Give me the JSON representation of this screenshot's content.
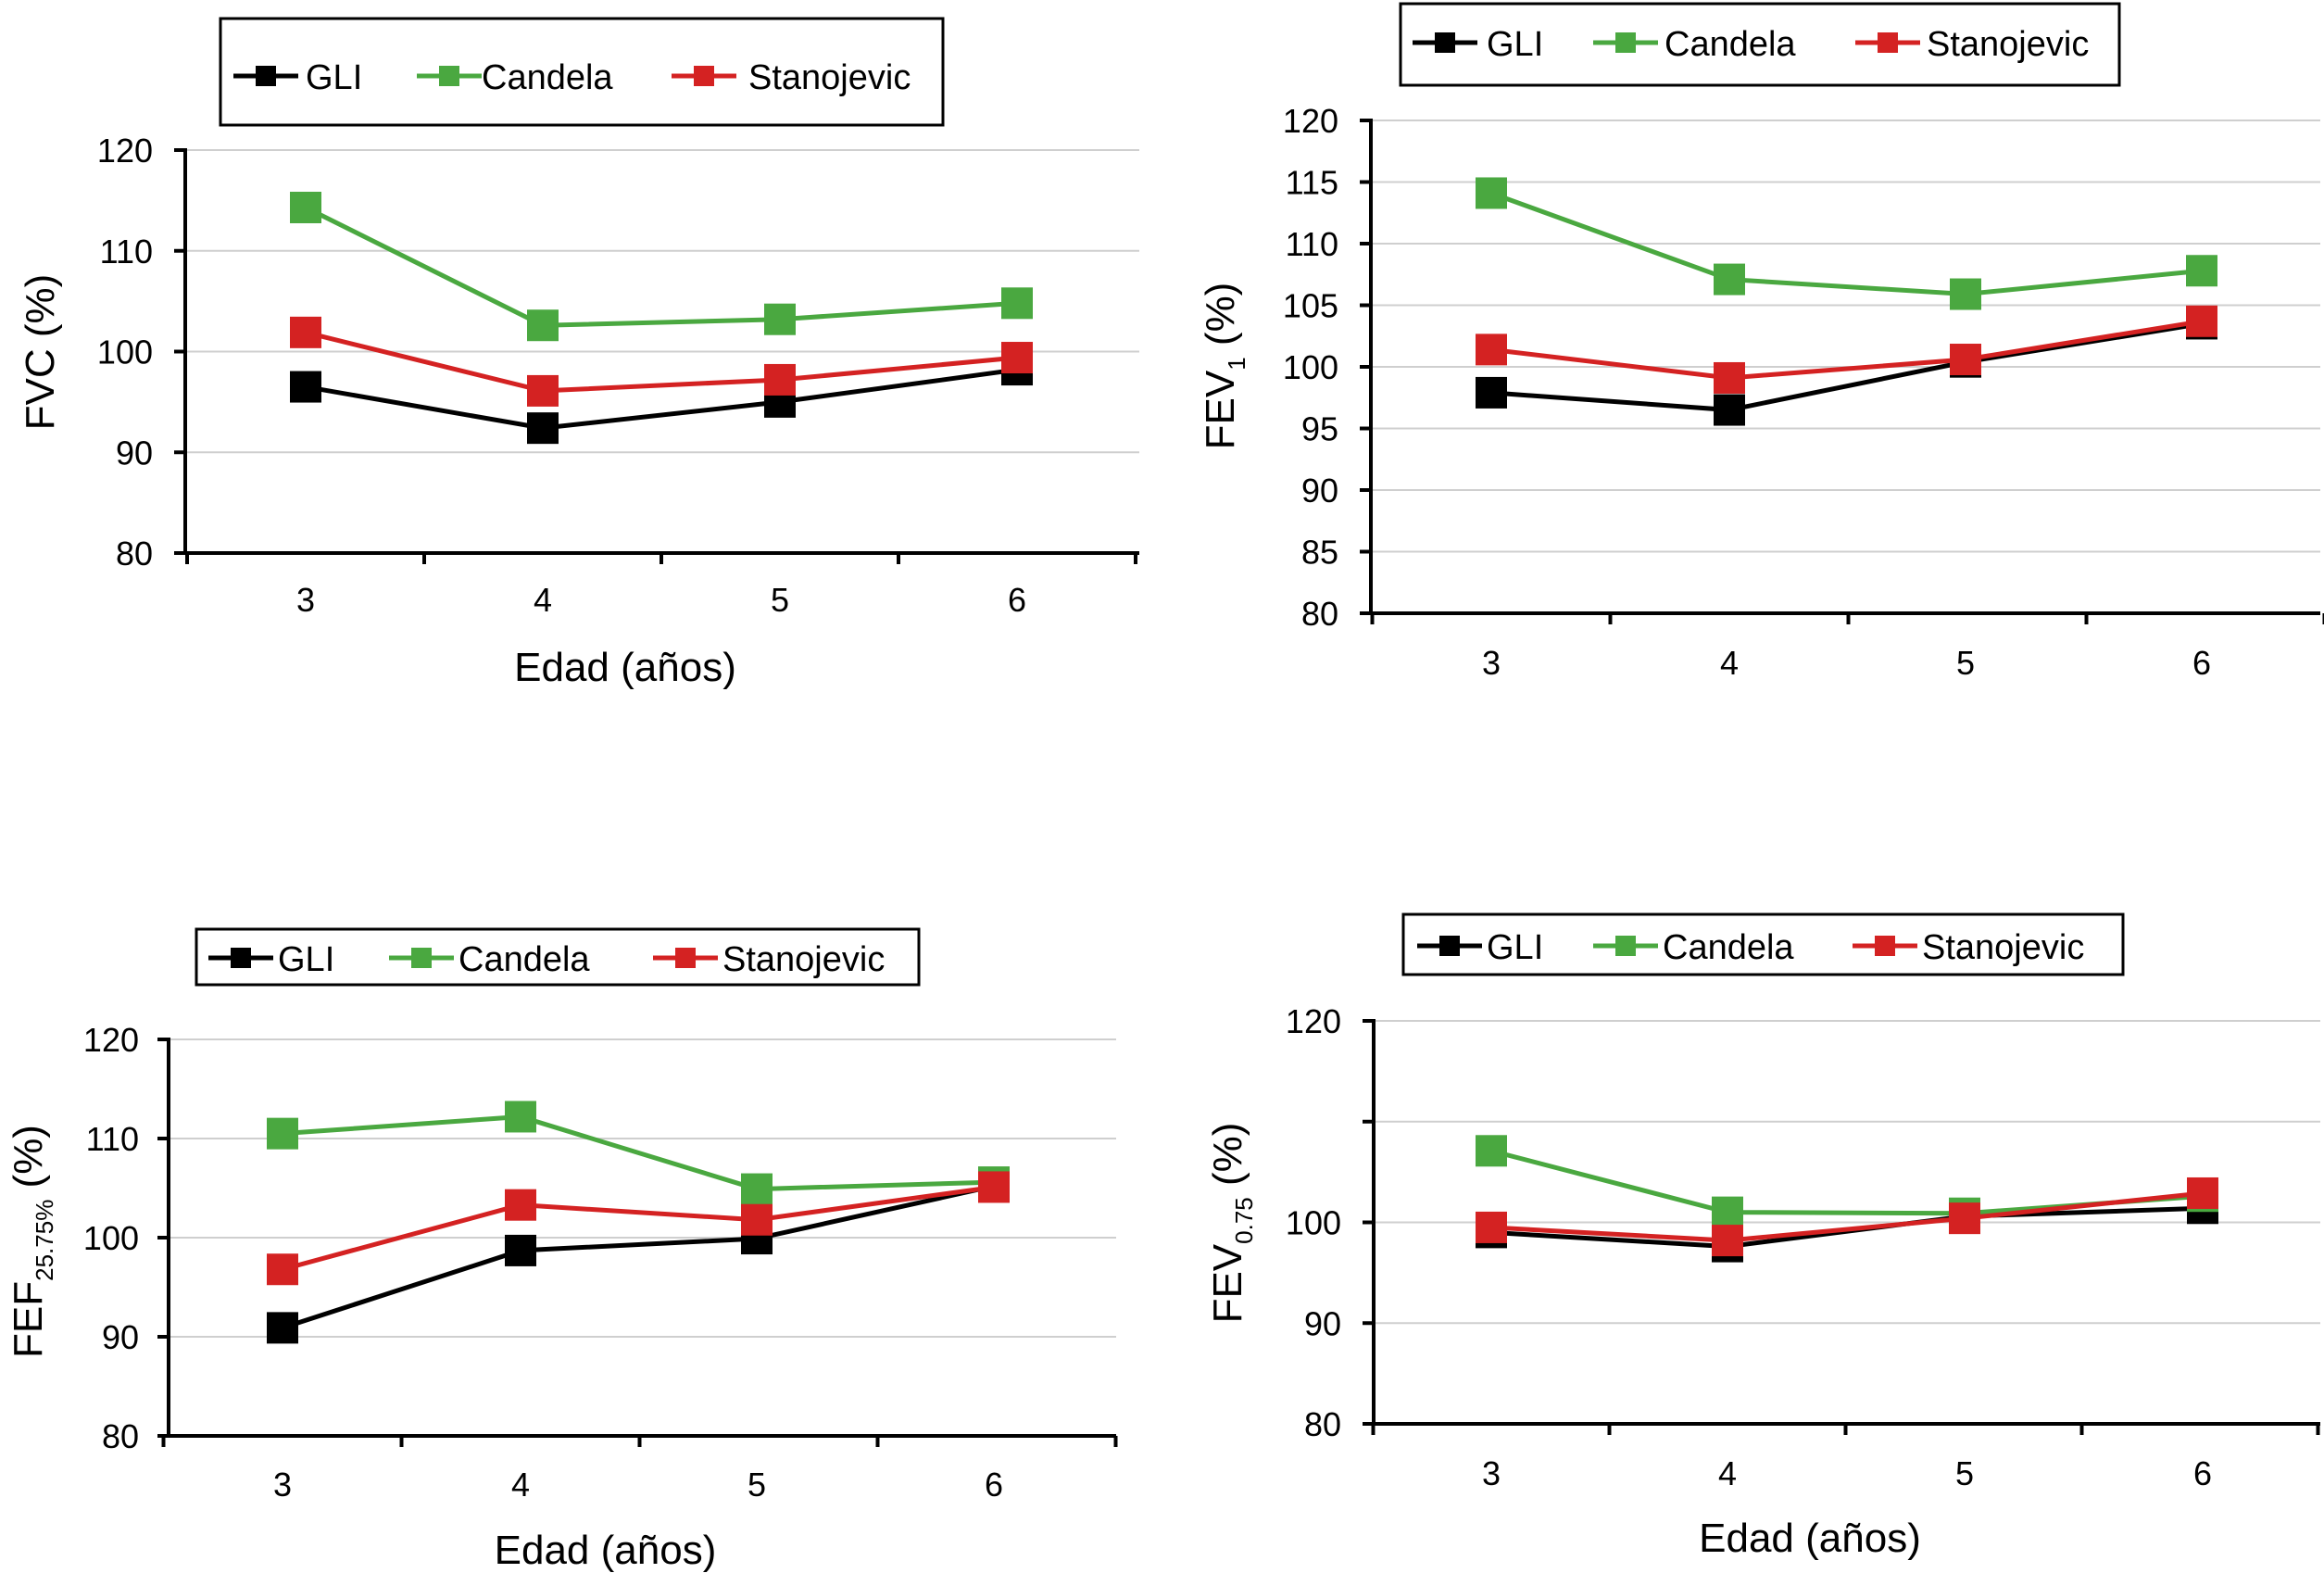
{
  "colors": {
    "GLI": "#000000",
    "Candela": "#4aa840",
    "Stanojevic": "#d42222",
    "grid": "#cfcfcf"
  },
  "chart_data": [
    {
      "id": "fvc",
      "type": "line",
      "ylabel_main": "FVC (%)",
      "ylabel_sub": "",
      "ylabel_tail": "",
      "xlabel": "Edad (años)",
      "categories": [
        "3",
        "4",
        "5",
        "6"
      ],
      "ylim": [
        80,
        120
      ],
      "yticks": [
        80,
        90,
        100,
        110,
        120
      ],
      "ytick_labels": [
        "80",
        "90",
        "100",
        "110",
        "120"
      ],
      "legend": "top-left",
      "grid": true,
      "series": [
        {
          "name": "GLI",
          "values": [
            96.5,
            92.4,
            95.0,
            98.2
          ]
        },
        {
          "name": "Candela",
          "values": [
            114.3,
            102.6,
            103.2,
            104.8
          ]
        },
        {
          "name": "Stanojevic",
          "values": [
            101.9,
            96.1,
            97.2,
            99.4
          ]
        }
      ]
    },
    {
      "id": "fev1",
      "type": "line",
      "ylabel_main": "FEV",
      "ylabel_sub": "1",
      "ylabel_tail": " (%)",
      "xlabel": "",
      "categories": [
        "3",
        "4",
        "5",
        "6"
      ],
      "ylim": [
        80,
        120
      ],
      "yticks": [
        80,
        85,
        90,
        95,
        100,
        105,
        110,
        115,
        120
      ],
      "ytick_labels": [
        "80",
        "85",
        "90",
        "95",
        "100",
        "105",
        "110",
        "115",
        "120"
      ],
      "legend": "top",
      "grid": true,
      "series": [
        {
          "name": "GLI",
          "values": [
            97.9,
            96.5,
            100.4,
            103.5
          ]
        },
        {
          "name": "Candela",
          "values": [
            114.1,
            107.1,
            105.9,
            107.8
          ]
        },
        {
          "name": "Stanojevic",
          "values": [
            101.4,
            99.1,
            100.6,
            103.7
          ]
        }
      ]
    },
    {
      "id": "fef2575",
      "type": "line",
      "ylabel_main": "FEF",
      "ylabel_sub": "25.75%",
      "ylabel_tail": " (%)",
      "xlabel": "Edad (años)",
      "categories": [
        "3",
        "4",
        "5",
        "6"
      ],
      "ylim": [
        80,
        120
      ],
      "yticks": [
        80,
        90,
        100,
        110,
        120
      ],
      "ytick_labels": [
        "80",
        "90",
        "100",
        "110",
        "120"
      ],
      "legend": "top",
      "grid": true,
      "series": [
        {
          "name": "GLI",
          "values": [
            90.9,
            98.7,
            99.9,
            105.2
          ]
        },
        {
          "name": "Candela",
          "values": [
            110.5,
            112.2,
            104.9,
            105.6
          ]
        },
        {
          "name": "Stanojevic",
          "values": [
            96.8,
            103.3,
            101.8,
            105.1
          ]
        }
      ]
    },
    {
      "id": "fev075",
      "type": "line",
      "ylabel_main": "FEV",
      "ylabel_sub": "0.75",
      "ylabel_tail": " (%)",
      "xlabel": "Edad (años)",
      "categories": [
        "3",
        "4",
        "5",
        "6"
      ],
      "ylim": [
        80,
        120
      ],
      "yticks": [
        80,
        90,
        100,
        110,
        120
      ],
      "ytick_labels": [
        "80",
        "90",
        "100",
        "",
        "120"
      ],
      "legend": "top",
      "grid": true,
      "series": [
        {
          "name": "GLI",
          "values": [
            99.0,
            97.6,
            100.6,
            101.4
          ]
        },
        {
          "name": "Candela",
          "values": [
            107.1,
            101.0,
            100.9,
            102.6
          ]
        },
        {
          "name": "Stanojevic",
          "values": [
            99.5,
            98.2,
            100.4,
            102.9
          ]
        }
      ]
    }
  ]
}
